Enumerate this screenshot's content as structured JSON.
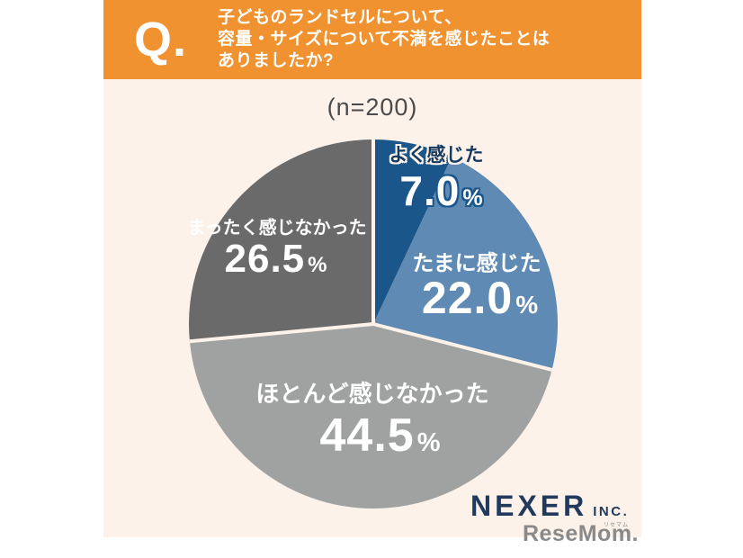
{
  "page": {
    "background": "#ffffff",
    "panel_background": "#fcf2e9"
  },
  "header": {
    "q_mark": "Q.",
    "background": "#f0922f",
    "text_color": "#ffffff",
    "question_lines": [
      "子どものランドセルについて、",
      "容量・サイズについて不満を感じたことは",
      "ありましたか?"
    ]
  },
  "chart_data": {
    "type": "pie",
    "sample_label": "(n=200)",
    "n": 200,
    "start_angle": "12-oclock",
    "direction": "clockwise",
    "unit": "%",
    "slices": [
      {
        "label": "よく感じた",
        "value": 7.0,
        "value_str": "7.0",
        "color": "#1a568a"
      },
      {
        "label": "たまに感じた",
        "value": 22.0,
        "value_str": "22.0",
        "color": "#5e8ab4"
      },
      {
        "label": "ほとんど感じなかった",
        "value": 44.5,
        "value_str": "44.5",
        "color": "#a0a1a1"
      },
      {
        "label": "まったく感じなかった",
        "value": 26.5,
        "value_str": "26.5",
        "color": "#6a6a6b"
      }
    ],
    "separator_color": "#fcf2e9",
    "separator_width": 4,
    "separator_at_fractions": [
      0,
      0.29,
      0.735
    ],
    "legend_position": "none",
    "labels_inside": true
  },
  "footer": {
    "nexer_name": "NEXER",
    "nexer_suffix": "INC.",
    "nexer_color": "#21395c",
    "resemom_name": "ReseMom.",
    "resemom_ruby": "リセマム",
    "resemom_color": "#8a8a8a"
  }
}
